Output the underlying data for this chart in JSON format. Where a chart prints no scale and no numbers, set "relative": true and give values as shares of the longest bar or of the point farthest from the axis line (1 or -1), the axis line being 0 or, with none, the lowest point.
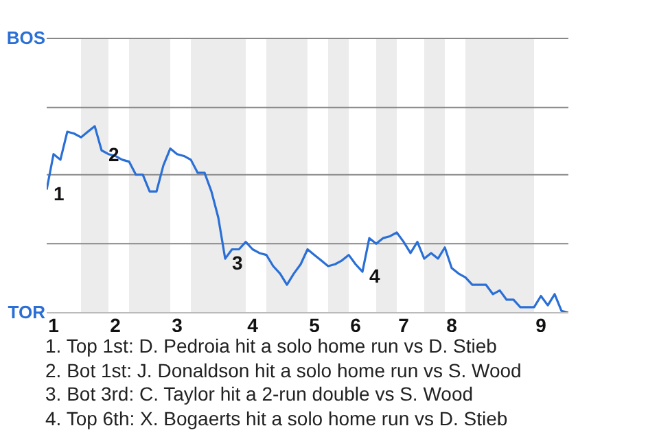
{
  "chart_data": {
    "type": "line",
    "relative": true,
    "categories": [
      null,
      "1",
      null,
      null,
      null,
      null,
      null,
      null,
      null,
      null,
      "2",
      null,
      null,
      null,
      null,
      null,
      null,
      null,
      null,
      "3",
      null,
      null,
      null,
      null,
      null,
      null,
      null,
      null,
      null,
      null,
      "4",
      null,
      null,
      null,
      null,
      null,
      null,
      null,
      null,
      "5",
      null,
      null,
      null,
      null,
      null,
      "6",
      null,
      null,
      null,
      null,
      null,
      null,
      "7",
      null,
      null,
      null,
      null,
      null,
      null,
      "8",
      null,
      null,
      null,
      null,
      null,
      null,
      null,
      null,
      null,
      null,
      null,
      null,
      "9",
      null,
      null,
      null,
      null
    ],
    "marker": "none",
    "line_style": "solid",
    "series": [
      {
        "color": "#2a6fd6",
        "values": [
          0.66,
          0.85,
          0.82,
          0.97,
          0.96,
          0.94,
          0.97,
          1,
          0.87,
          0.85,
          0.84,
          0.82,
          0.81,
          0.74,
          0.74,
          0.65,
          0.65,
          0.79,
          0.88,
          0.85,
          0.84,
          0.82,
          0.75,
          0.75,
          0.65,
          0.51,
          0.29,
          0.34,
          0.34,
          0.38,
          0.34,
          0.32,
          0.31,
          0.25,
          0.21,
          0.15,
          0.21,
          0.26,
          0.34,
          0.31,
          0.28,
          0.25,
          0.26,
          0.28,
          0.31,
          0.26,
          0.22,
          0.4,
          0.37,
          0.4,
          0.41,
          0.43,
          0.38,
          0.32,
          0.38,
          0.29,
          0.32,
          0.29,
          0.35,
          0.24,
          0.21,
          0.19,
          0.15,
          0.15,
          0.15,
          0.1,
          0.12,
          0.07,
          0.07,
          0.03,
          0.03,
          0.03,
          0.09,
          0.04,
          0.1,
          0.01,
          0
        ],
        "name": null
      }
    ],
    "ref_lines": [
      {
        "axis": "y",
        "value": 1.47,
        "color": "#888888"
      },
      {
        "axis": "y",
        "value": 1.1,
        "color": "#888888"
      },
      {
        "axis": "y",
        "value": 0.74,
        "color": "#888888"
      },
      {
        "axis": "y",
        "value": 0.37,
        "color": "#888888"
      }
    ],
    "annotations": [
      "BOS",
      "TOR",
      "1",
      "2",
      "3",
      "4",
      "1. Top 1st: D. Pedroia hit a solo home run vs D. Stieb",
      "2. Bot 1st: J. Donaldson hit a solo home run vs S. Wood",
      "3. Bot 3rd: C. Taylor hit a 2-run double vs S. Wood",
      "4. Top 6th: X. Bogaerts hit a solo home run vs D. Stieb"
    ]
  }
}
